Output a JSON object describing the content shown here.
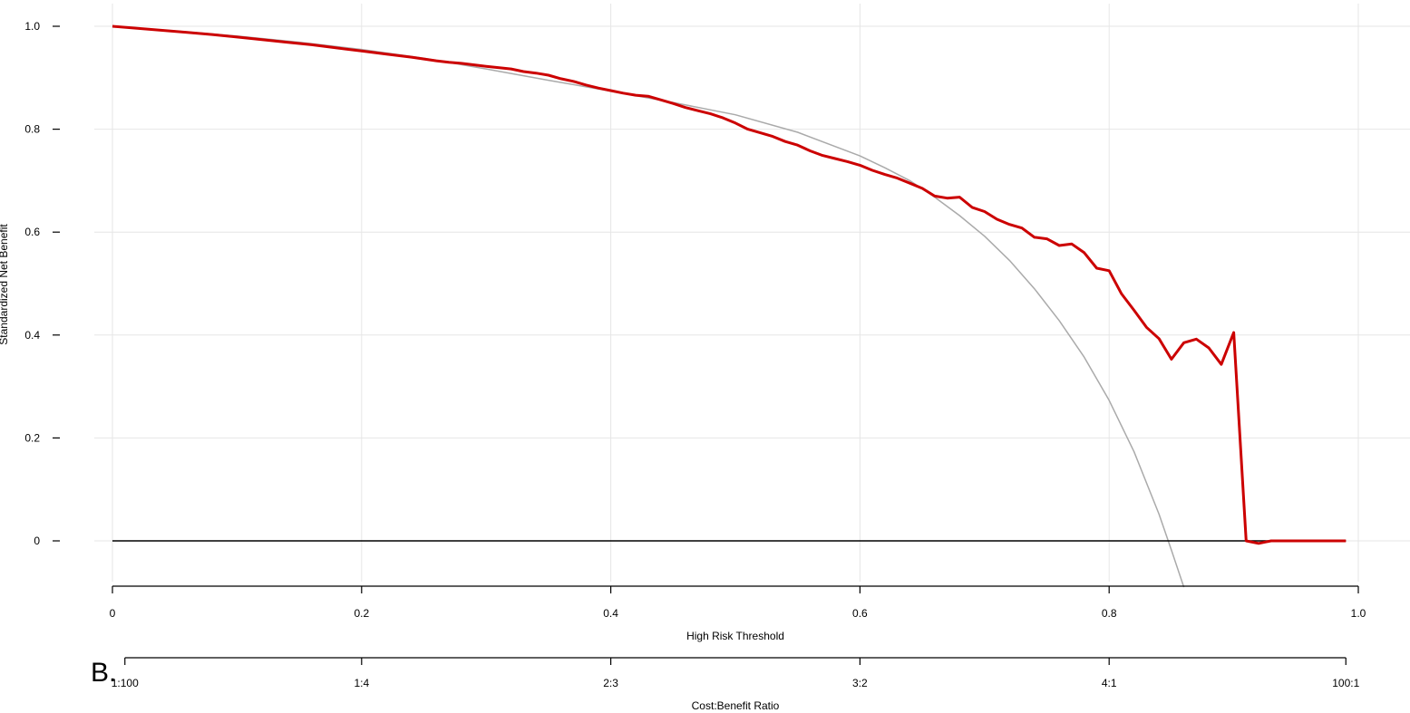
{
  "panel_label": "B.",
  "chart_data": {
    "type": "line",
    "xlabel": "High Risk Threshold",
    "ylabel": "Standardized Net Benefit",
    "xlim": [
      0,
      1.0
    ],
    "ylim": [
      -0.09,
      1.03
    ],
    "x_ticks": [
      0,
      0.2,
      0.4,
      0.6,
      0.8,
      1.0
    ],
    "x_tick_labels": [
      "0",
      "0.2",
      "0.4",
      "0.6",
      "0.8",
      "1.0"
    ],
    "y_ticks": [
      0,
      0.2,
      0.4,
      0.6,
      0.8,
      1.0
    ],
    "y_tick_labels": [
      "0",
      "0.2",
      "0.4",
      "0.6",
      "0.8",
      "1.0"
    ],
    "grid": true,
    "cost_benefit_axis": {
      "label": "Cost:Benefit Ratio",
      "ticks": [
        0.01,
        0.2,
        0.4,
        0.6,
        0.8,
        0.99
      ],
      "tick_labels": [
        "1:100",
        "1:4",
        "2:3",
        "3:2",
        "4:1",
        "100:1"
      ]
    },
    "series": [
      {
        "color": "#cc0000",
        "x": [
          0,
          0.02,
          0.04,
          0.06,
          0.08,
          0.1,
          0.12,
          0.14,
          0.16,
          0.18,
          0.2,
          0.22,
          0.24,
          0.26,
          0.27,
          0.28,
          0.3,
          0.32,
          0.33,
          0.34,
          0.35,
          0.36,
          0.37,
          0.38,
          0.39,
          0.4,
          0.41,
          0.42,
          0.43,
          0.44,
          0.45,
          0.46,
          0.47,
          0.48,
          0.49,
          0.5,
          0.51,
          0.52,
          0.53,
          0.54,
          0.55,
          0.56,
          0.57,
          0.58,
          0.59,
          0.6,
          0.61,
          0.62,
          0.63,
          0.64,
          0.65,
          0.66,
          0.67,
          0.68,
          0.69,
          0.7,
          0.71,
          0.72,
          0.73,
          0.74,
          0.75,
          0.76,
          0.77,
          0.78,
          0.79,
          0.8,
          0.81,
          0.82,
          0.83,
          0.84,
          0.85,
          0.86,
          0.87,
          0.88,
          0.89,
          0.9,
          0.91,
          0.92,
          0.93,
          0.94,
          0.95,
          0.96,
          0.97,
          0.98,
          0.99
        ],
        "y": [
          1.0,
          0.996,
          0.992,
          0.988,
          0.984,
          0.979,
          0.974,
          0.969,
          0.964,
          0.958,
          0.952,
          0.946,
          0.94,
          0.933,
          0.93,
          0.928,
          0.922,
          0.917,
          0.912,
          0.909,
          0.905,
          0.898,
          0.893,
          0.886,
          0.88,
          0.875,
          0.87,
          0.866,
          0.864,
          0.857,
          0.85,
          0.842,
          0.836,
          0.83,
          0.822,
          0.812,
          0.8,
          0.793,
          0.786,
          0.776,
          0.769,
          0.758,
          0.749,
          0.743,
          0.737,
          0.73,
          0.72,
          0.712,
          0.705,
          0.695,
          0.685,
          0.67,
          0.666,
          0.668,
          0.648,
          0.64,
          0.625,
          0.615,
          0.608,
          0.59,
          0.587,
          0.574,
          0.577,
          0.56,
          0.53,
          0.525,
          0.48,
          0.448,
          0.415,
          0.393,
          0.353,
          0.385,
          0.392,
          0.375,
          0.343,
          0.405,
          0.0,
          -0.005,
          0.0,
          0.0,
          0.0,
          0.0,
          0.0,
          0.0,
          0.0
        ]
      },
      {
        "color": "#aaaaaa",
        "x": [
          0,
          0.05,
          0.1,
          0.15,
          0.2,
          0.25,
          0.3,
          0.35,
          0.4,
          0.45,
          0.5,
          0.55,
          0.6,
          0.62,
          0.64,
          0.66,
          0.68,
          0.7,
          0.72,
          0.74,
          0.76,
          0.78,
          0.8,
          0.82,
          0.84,
          0.85,
          0.86
        ],
        "y": [
          1.0,
          0.991,
          0.981,
          0.969,
          0.955,
          0.938,
          0.917,
          0.895,
          0.874,
          0.852,
          0.828,
          0.794,
          0.748,
          0.725,
          0.7,
          0.668,
          0.632,
          0.592,
          0.545,
          0.49,
          0.428,
          0.357,
          0.273,
          0.173,
          0.052,
          -0.018,
          -0.09
        ]
      },
      {
        "color": "#000000",
        "x": [
          0,
          0.99
        ],
        "y": [
          0,
          0
        ]
      }
    ]
  }
}
